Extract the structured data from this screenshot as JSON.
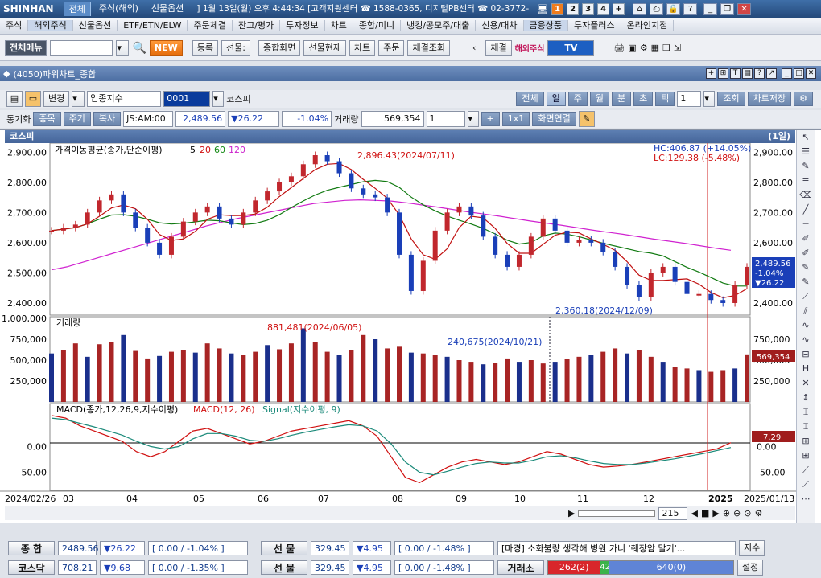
{
  "titlebar": {
    "logo": "SHINHAN",
    "tabs": [
      "전체",
      "주식(해외)",
      "선물옵션"
    ],
    "info": "] 1월 13일(월) 오후 4:44:34 [고객지원센터 ☎ 1588-0365, 디지털PB센터 ☎ 02-3772-",
    "screens": [
      "1",
      "2",
      "3",
      "4",
      "+"
    ]
  },
  "menu": [
    "주식",
    "해외주식",
    "선물옵션",
    "ETF/ETN/ELW",
    "주문체결",
    "잔고/평가",
    "투자정보",
    "차트",
    "종합/미니",
    "뱅킹/공모주/대출",
    "신용/대차",
    "금융상품",
    "투자플러스",
    "온라인지점"
  ],
  "toolbar": {
    "menu_btn": "전체메뉴",
    "new_badge": "NEW",
    "buttons": [
      "등록",
      "선물:",
      "종합화면",
      "선물현재",
      "차트",
      "주문",
      "체결조회"
    ],
    "fill_btn": "체결",
    "overseas": "해외주식",
    "tv": "TV"
  },
  "window": {
    "title": "(4050)파워차트_종합"
  },
  "controls": {
    "change_btn": "변경",
    "index_select": "업종지수",
    "code": "0001",
    "name": "코스피",
    "periods": [
      "전체",
      "일",
      "주",
      "월",
      "분",
      "초",
      "틱"
    ],
    "period_count": "1",
    "lookup": "조회",
    "save": "차트저장",
    "sync_label": "동기화",
    "tabs2": [
      "종목",
      "주기",
      "복사"
    ],
    "time": "JS:AM:00",
    "price": "2,489.56",
    "change": "▼26.22",
    "change_pct": "-1.04%",
    "volume_label": "거래량",
    "volume": "569,354",
    "layout": "1",
    "grid": "1x1",
    "link": "화면연결"
  },
  "chart": {
    "title": "코스피",
    "period": "(1일)",
    "hc": "HC:406.87 (+14.05%)",
    "lc": "LC:129.38 (-5.48%)",
    "ma_legend": "가격이동평균(종가,단순이평)",
    "ma_periods": [
      "5",
      "20",
      "60",
      "120"
    ],
    "high_label": "2,896.43(2024/07/11)",
    "low_label": "2,360.18(2024/12/09)",
    "last_price": "2,489.56",
    "last_chg_pct": "-1.04%",
    "last_chg": "▼26.22",
    "vol_legend": "거래량",
    "vol_high": "881,481(2024/06/05)",
    "vol_marker": "240,675(2024/10/21)",
    "last_vol": "569,354",
    "macd_legend": "MACD(종가,12,26,9,지수이평)",
    "macd_name": "MACD(12, 26)",
    "signal_name": "Signal(지수이평, 9)",
    "last_macd": "7.29",
    "start_date": "2024/02/26",
    "end_date": "2025/01/13",
    "zoom": "215"
  },
  "chart_data": {
    "type": "line",
    "x": [
      "03",
      "04",
      "05",
      "06",
      "07",
      "08",
      "09",
      "10",
      "11",
      "12",
      "2025"
    ],
    "price_axis": [
      "2,900.00",
      "2,800.00",
      "2,700.00",
      "2,600.00",
      "2,500.00",
      "2,400.00"
    ],
    "volume_axis": [
      "1,000,000",
      "750,000",
      "500,000",
      "250,000"
    ],
    "macd_axis": [
      "0.00",
      "-50.00"
    ],
    "right_volume_axis": [
      "750,000",
      "500,000",
      "250,000"
    ],
    "right_price_axis": [
      "2,900.00",
      "2,800.00",
      "2,700.00",
      "2,600.00",
      "2,500.00",
      "2,400.00"
    ],
    "price_series": [
      2640,
      2650,
      2660,
      2700,
      2740,
      2760,
      2700,
      2650,
      2600,
      2560,
      2620,
      2670,
      2700,
      2720,
      2680,
      2660,
      2700,
      2740,
      2770,
      2800,
      2820,
      2860,
      2890,
      2870,
      2830,
      2780,
      2760,
      2750,
      2700,
      2560,
      2440,
      2540,
      2640,
      2700,
      2720,
      2690,
      2620,
      2560,
      2520,
      2560,
      2620,
      2680,
      2640,
      2600,
      2610,
      2600,
      2570,
      2520,
      2460,
      2420,
      2500,
      2520,
      2470,
      2430,
      2430,
      2410,
      2400,
      2460,
      2520
    ],
    "ma120": [
      2510,
      2520,
      2535,
      2550,
      2565,
      2580,
      2595,
      2610,
      2625,
      2640,
      2655,
      2668,
      2680,
      2690,
      2700,
      2710,
      2720,
      2730,
      2735,
      2740,
      2742,
      2740,
      2738,
      2732,
      2725,
      2718,
      2710,
      2702,
      2695,
      2688,
      2680,
      2672,
      2665,
      2658,
      2650,
      2642,
      2635,
      2628,
      2620,
      2612,
      2605,
      2598,
      2590,
      2582,
      2575
    ],
    "volume_series": [
      580,
      620,
      700,
      540,
      690,
      720,
      800,
      610,
      520,
      550,
      600,
      620,
      590,
      700,
      640,
      580,
      560,
      600,
      680,
      630,
      700,
      880,
      720,
      600,
      560,
      620,
      800,
      750,
      640,
      660,
      590,
      580,
      560,
      540,
      500,
      480,
      450,
      470,
      520,
      480,
      500,
      460,
      480,
      510,
      540,
      560,
      600,
      640,
      580,
      620,
      540,
      480,
      420,
      400,
      380,
      360,
      380,
      400,
      569
    ],
    "macd_series": [
      60,
      55,
      40,
      30,
      20,
      10,
      -10,
      -20,
      -10,
      10,
      30,
      35,
      25,
      15,
      5,
      10,
      20,
      30,
      35,
      40,
      45,
      50,
      40,
      20,
      -20,
      -60,
      -70,
      -55,
      -40,
      -30,
      -25,
      -30,
      -35,
      -30,
      -20,
      -10,
      -15,
      -25,
      -35,
      -40,
      -38,
      -35,
      -30,
      -25,
      -20,
      -15,
      -10,
      -5,
      7.29
    ],
    "signal_series": [
      55,
      52,
      45,
      38,
      30,
      22,
      10,
      0,
      -5,
      0,
      15,
      25,
      25,
      20,
      12,
      10,
      15,
      22,
      28,
      33,
      38,
      42,
      40,
      30,
      5,
      -30,
      -50,
      -55,
      -48,
      -40,
      -33,
      -30,
      -32,
      -32,
      -27,
      -20,
      -18,
      -22,
      -28,
      -33,
      -35,
      -35,
      -32,
      -28,
      -24,
      -19,
      -14,
      -8,
      -2
    ]
  },
  "scroll": {
    "zoom": "215"
  },
  "status": {
    "row1": {
      "label": "종 합",
      "value": "2489.56",
      "change": "▼26.22",
      "detail": "[ 0.00 / -1.04% ]",
      "label2": "선 물",
      "value2": "329.45",
      "change2": "▼4.95",
      "detail2": "[ 0.00 / -1.48% ]",
      "news": "[마경] 소화불량 생각해 병원 가니 '췌장암 말기'...",
      "btn": "지수"
    },
    "row2": {
      "label": "코스닥",
      "value": "708.21",
      "change": "▼9.68",
      "detail": "[ 0.00 / -1.35% ]",
      "label2": "선 물",
      "value2": "329.45",
      "change2": "▼4.95",
      "detail2": "[ 0.00 / -1.48% ]",
      "label3": "거래소",
      "up": "262(2)",
      "flat": "42",
      "down": "640(0)",
      "btn": "설정"
    }
  }
}
